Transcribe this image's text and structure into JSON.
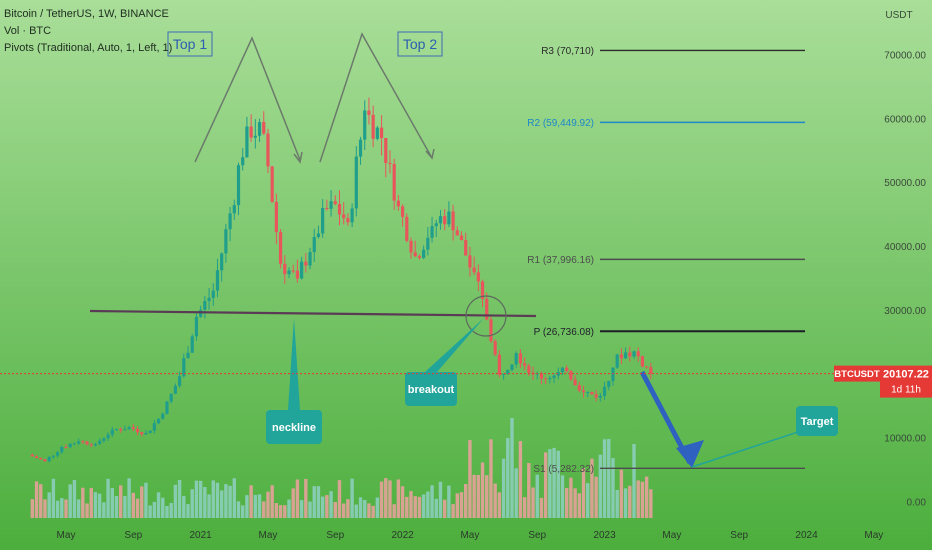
{
  "legend": {
    "symbol": "Bitcoin / TetherUS, 1W, BINANCE",
    "volume": "Vol · BTC",
    "pivots": "Pivots (Traditional, Auto, 1, Left, 1)"
  },
  "price_axis": {
    "currency": "USDT",
    "ticks": [
      {
        "value": 70000,
        "label": "70000.00"
      },
      {
        "value": 60000,
        "label": "60000.00"
      },
      {
        "value": 50000,
        "label": "50000.00"
      },
      {
        "value": 40000,
        "label": "40000.00"
      },
      {
        "value": 30000,
        "label": "30000.00"
      },
      {
        "value": 20000,
        "label": "20000.00"
      },
      {
        "value": 10000,
        "label": "10000.00"
      },
      {
        "value": 0,
        "label": "0.00"
      }
    ],
    "current_symbol": "BTCUSDT",
    "current_price": "20107.22",
    "countdown": "1d 11h"
  },
  "time_axis": {
    "ticks": [
      "May",
      "Sep",
      "2021",
      "May",
      "Sep",
      "2022",
      "May",
      "Sep",
      "2023",
      "May",
      "Sep",
      "2024",
      "May"
    ]
  },
  "pivots": [
    {
      "label": "R3 (70,710)",
      "value": 70710,
      "color": "#2b2b2b"
    },
    {
      "label": "R2 (59,449.92)",
      "value": 59449.92,
      "color": "#1e88c8"
    },
    {
      "label": "R1 (37,996.16)",
      "value": 37996.16,
      "color": "#4d4d4d"
    },
    {
      "label": "P (26,736.08)",
      "value": 26736.08,
      "color": "#1e1e2a"
    },
    {
      "label": "S1 (5,282.32)",
      "value": 5282.32,
      "color": "#4d4d4d"
    }
  ],
  "annotations": {
    "top1": "Top 1",
    "top2": "Top 2",
    "neckline": "neckline",
    "breakout": "breakout",
    "target": "Target"
  },
  "colors": {
    "up": "#1f9e8c",
    "down": "#e8565b",
    "background_top": "#a9de99",
    "background_bottom": "#4cae3d",
    "price_tag": "#e53935"
  },
  "chart_data": {
    "type": "candlestick",
    "interval": "1W",
    "x": [
      "2020-03",
      "2020-04",
      "2020-05",
      "2020-06",
      "2020-07",
      "2020-08",
      "2020-09",
      "2020-10",
      "2020-11",
      "2020-12",
      "2021-01",
      "2021-02",
      "2021-03",
      "2021-04",
      "2021-05",
      "2021-06",
      "2021-07",
      "2021-08",
      "2021-09",
      "2021-10",
      "2021-11",
      "2021-12",
      "2022-01",
      "2022-02",
      "2022-03",
      "2022-04",
      "2022-05",
      "2022-06",
      "2022-07",
      "2022-08",
      "2022-09",
      "2022-10",
      "2022-11",
      "2022-12",
      "2023-01",
      "2023-02",
      "2023-03"
    ],
    "close": [
      6400,
      8600,
      9500,
      9100,
      11300,
      11700,
      10800,
      13800,
      19700,
      29000,
      33100,
      45200,
      58800,
      57700,
      37300,
      35000,
      41500,
      47100,
      43800,
      61300,
      57000,
      46300,
      38500,
      43200,
      45500,
      38600,
      31800,
      19900,
      23300,
      20000,
      19400,
      20500,
      17200,
      16600,
      23100,
      23600,
      20100
    ],
    "annotations": [
      {
        "text": "Top 1",
        "x": "2021-04"
      },
      {
        "text": "Top 2",
        "x": "2021-11"
      },
      {
        "text": "neckline",
        "y": 29500
      },
      {
        "text": "breakout",
        "x": "2022-05"
      },
      {
        "text": "Target",
        "y": 5282.32
      }
    ]
  }
}
